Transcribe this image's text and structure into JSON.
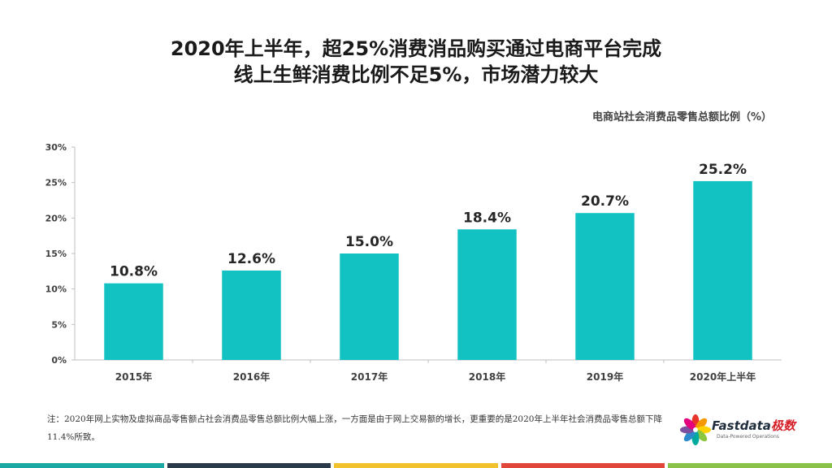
{
  "title": {
    "line1": "2020年上半年，超25%消费消品购买通过电商平台完成",
    "line2": "线上生鲜消费比例不足5%，市场潜力较大"
  },
  "chart_data": {
    "type": "bar",
    "title": "电商站社会消费品零售总额比例（%）",
    "categories": [
      "2015年",
      "2016年",
      "2017年",
      "2018年",
      "2019年",
      "2020年上半年"
    ],
    "values": [
      10.8,
      12.6,
      15.0,
      18.4,
      20.7,
      25.2
    ],
    "value_labels": [
      "10.8%",
      "12.6%",
      "15.0%",
      "18.4%",
      "20.7%",
      "25.2%"
    ],
    "ylim": [
      0,
      30
    ],
    "yticks": [
      0,
      5,
      10,
      15,
      20,
      25,
      30
    ],
    "ytick_labels": [
      "0%",
      "5%",
      "10%",
      "15%",
      "20%",
      "25%",
      "30%"
    ],
    "xlabel": "",
    "ylabel": "",
    "grid": false,
    "bar_color": "#12c2c3"
  },
  "note": {
    "text": "注：2020年网上实物及虚拟商品零售额占社会消费品零售总额比例大幅上涨，一方面是由于网上交易额的增长，更重要的是2020年上半年社会消费品零售总额下降11.4%所致。"
  },
  "logo": {
    "name_main": "Fastdata",
    "name_accent": "极数",
    "tagline": "Data-Powered Operations",
    "icon": "flower-logo-icon",
    "petal_colors": [
      "#e8332a",
      "#f39800",
      "#ffd200",
      "#8cc63f",
      "#00a99d",
      "#2e8bcb",
      "#7d4fa0",
      "#e4007f"
    ]
  },
  "footer_colors": [
    "#1aa8a3",
    "#2b3a4a",
    "#f2c12e",
    "#e0463a",
    "#8ac249"
  ]
}
